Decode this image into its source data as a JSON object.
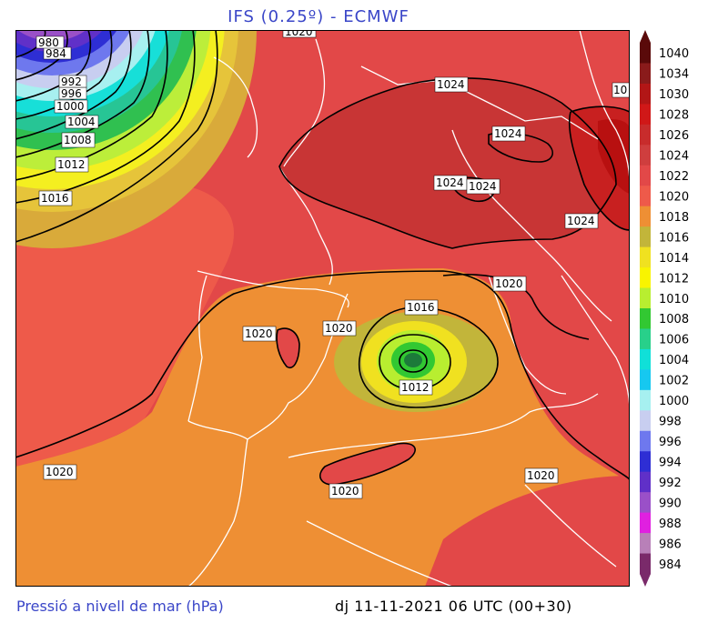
{
  "header": {
    "title": "IFS (0.25º) - ECMWF"
  },
  "footer": {
    "variable": "Pressió a nivell de mar (hPa)",
    "valid_time": "dj 11-11-2021 06 UTC (00+30)"
  },
  "legend": {
    "levels": [
      "1040",
      "1034",
      "1030",
      "1028",
      "1026",
      "1024",
      "1022",
      "1020",
      "1018",
      "1016",
      "1014",
      "1012",
      "1010",
      "1008",
      "1006",
      "1004",
      "1002",
      "1000",
      "998",
      "996",
      "994",
      "992",
      "990",
      "988",
      "986",
      "984"
    ],
    "colors": [
      "#5a0a0a",
      "#8a1b1b",
      "#b21616",
      "#d01818",
      "#c82c2c",
      "#cf3e3e",
      "#e24848",
      "#ee5a4a",
      "#ee8f34",
      "#c2b53a",
      "#f0e120",
      "#f9f400",
      "#b8ee30",
      "#32c832",
      "#28d08a",
      "#10e0d8",
      "#16c8f0",
      "#a6f0f0",
      "#c8cef0",
      "#6e78ee",
      "#2e2ed4",
      "#6030c8",
      "#9a50c8",
      "#e020e0",
      "#b880b8",
      "#7a2a6a"
    ]
  },
  "isobar_labels": [
    {
      "name": "label-1024-n",
      "text": "1024"
    },
    {
      "name": "label-1024-e",
      "text": "1024"
    },
    {
      "name": "label-1024-w",
      "text": "1024"
    },
    {
      "name": "label-1024-c",
      "text": "1024"
    },
    {
      "name": "label-1024-se",
      "text": "1024"
    },
    {
      "name": "label-1020-top",
      "text": "1020"
    },
    {
      "name": "label-1020-iberia-n",
      "text": "1020"
    },
    {
      "name": "label-1020-iberia-c",
      "text": "1020"
    },
    {
      "name": "label-1020-west",
      "text": "1020"
    },
    {
      "name": "label-1020-africa",
      "text": "1020"
    },
    {
      "name": "label-1020-east",
      "text": "1020"
    },
    {
      "name": "label-1020-med",
      "text": "1020"
    },
    {
      "name": "label-1016-low",
      "text": "1016"
    },
    {
      "name": "label-1012-low",
      "text": "1012"
    },
    {
      "name": "label-1016-nw",
      "text": "1016"
    },
    {
      "name": "label-1012-nw",
      "text": "1012"
    },
    {
      "name": "label-1008-nw",
      "text": "1008"
    },
    {
      "name": "label-1004-nw",
      "text": "1004"
    },
    {
      "name": "label-1000-nw",
      "text": "1000"
    },
    {
      "name": "label-996-nw",
      "text": "996"
    },
    {
      "name": "label-992-nw",
      "text": "992"
    },
    {
      "name": "label-984-nw",
      "text": "984"
    },
    {
      "name": "label-980-nw",
      "text": "980"
    },
    {
      "name": "label-10-edge",
      "text": "10"
    }
  ]
}
